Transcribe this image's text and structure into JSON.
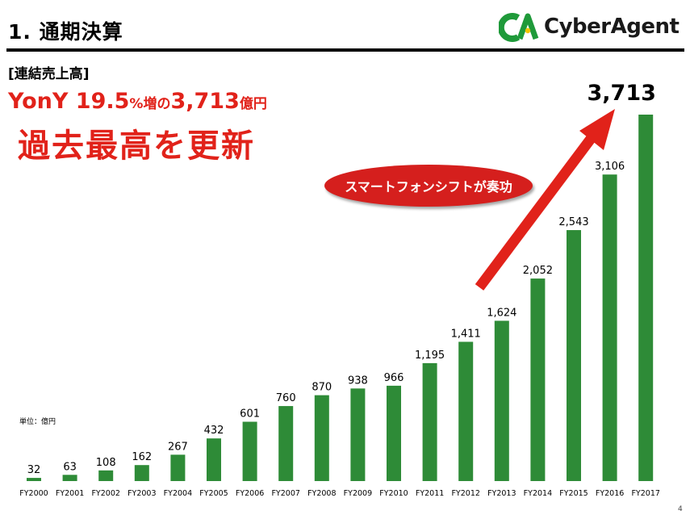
{
  "header": {
    "title": "1. 通期決算",
    "brand_name": "CyberAgent",
    "brand_mark": "CA"
  },
  "subtitle": "[連結売上高]",
  "headline": {
    "part1": "YonY 19.5",
    "part2": "%増の",
    "part3": "3,713",
    "part4": "億円",
    "line2": "過去最高を更新"
  },
  "callout": "スマートフォンシフトが奏功",
  "unit_label": "単位：億円",
  "page_number": "4",
  "colors": {
    "bar": "#2e8b37",
    "accent": "#e1221a",
    "pill": "#d51f1d",
    "brand_green": "#1f9a3a"
  },
  "icons": {
    "trend_arrow": "red-up-right-arrow",
    "logo": "cyberagent-logo"
  },
  "chart_data": {
    "type": "bar",
    "categories": [
      "FY2000",
      "FY2001",
      "FY2002",
      "FY2003",
      "FY2004",
      "FY2005",
      "FY2006",
      "FY2007",
      "FY2008",
      "FY2009",
      "FY2010",
      "FY2011",
      "FY2012",
      "FY2013",
      "FY2014",
      "FY2015",
      "FY2016",
      "FY2017"
    ],
    "values": [
      32,
      63,
      108,
      162,
      267,
      432,
      601,
      760,
      870,
      938,
      966,
      1195,
      1411,
      1624,
      2052,
      2543,
      3106,
      3713
    ],
    "data_labels": [
      "32",
      "63",
      "108",
      "162",
      "267",
      "432",
      "601",
      "760",
      "870",
      "938",
      "966",
      "1,195",
      "1,411",
      "1,624",
      "2,052",
      "2,543",
      "3,106",
      "3,713"
    ],
    "ylim": [
      0,
      3713
    ],
    "grid": false,
    "legend": "none"
  }
}
